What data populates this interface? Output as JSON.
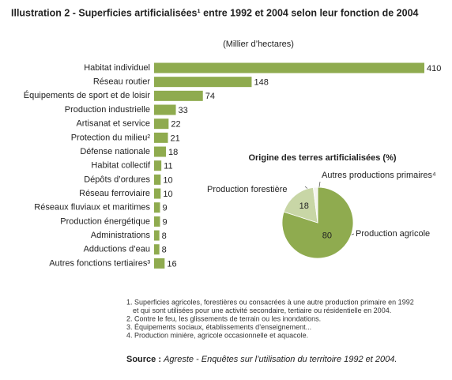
{
  "title": "Illustration 2 - Superficies artificialisées¹ entre 1992 et 2004 selon leur fonction de 2004",
  "chart_data": [
    {
      "type": "bar",
      "orientation": "horizontal",
      "subtitle": "(Millier d’hectares)",
      "color": "#8fab4f",
      "categories": [
        "Habitat individuel",
        "Réseau routier",
        "Équipements de sport et de loisir",
        "Production industrielle",
        "Artisanat et service",
        "Protection du milieu²",
        "Défense nationale",
        "Habitat collectif",
        "Dépôts d’ordures",
        "Réseau ferroviaire",
        "Réseaux fluviaux et maritimes",
        "Production énergétique",
        "Administrations",
        "Adductions d’eau",
        "Autres fonctions tertiaires³"
      ],
      "values": [
        410,
        148,
        74,
        33,
        22,
        21,
        18,
        11,
        10,
        10,
        9,
        9,
        8,
        8,
        16
      ]
    },
    {
      "type": "pie",
      "title": "Origine des terres artificialisées (%)",
      "categories": [
        "Production agricole",
        "Production forestière",
        "Autres productions primaires⁴"
      ],
      "values": [
        80,
        18,
        2
      ],
      "value_labels": [
        "80",
        "18",
        null
      ],
      "colors": [
        "#8fab4f",
        "#c8d6a6",
        "#f4f4ee"
      ]
    }
  ],
  "notes": [
    [
      "1. Superficies agricoles, forestières ou consacrées à une autre production primaire en 1992",
      "et qui sont utilisées pour une activité secondaire, tertiaire ou résidentielle en 2004."
    ],
    [
      "2. Contre le feu, les glissements de terrain ou les inondations."
    ],
    [
      "3. Équipements sociaux, établissements d’enseignement..."
    ],
    [
      "4. Production minière, agricole occasionnelle et aquacole."
    ]
  ],
  "source": {
    "label": "Source :",
    "text": "Agreste - Enquêtes sur l’utilisation du territoire 1992 et 2004."
  }
}
